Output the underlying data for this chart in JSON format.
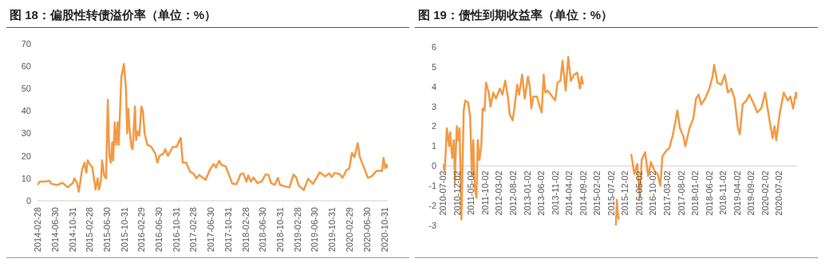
{
  "chart_data": [
    {
      "type": "line",
      "title": "图 18：偏股性转债溢价率（单位：%）",
      "color": "#f39a45",
      "x": [
        "2014-02-28",
        "2014-03-15",
        "2014-04-22",
        "2014-05-20",
        "2014-06-08",
        "2014-07-15",
        "2014-08-22",
        "2014-09-28",
        "2014-11-05",
        "2014-11-14",
        "2014-12-02",
        "2014-12-15",
        "2015-01-08",
        "2015-01-24",
        "2015-02-06",
        "2015-02-16",
        "2015-03-05",
        "2015-03-20",
        "2015-04-12",
        "2015-04-27",
        "2015-05-06",
        "2015-05-20",
        "2015-05-28",
        "2015-06-12",
        "2015-06-25",
        "2015-07-07",
        "2015-07-18",
        "2015-07-28",
        "2015-08-07",
        "2015-08-14",
        "2015-08-25",
        "2015-09-04",
        "2015-09-15",
        "2015-09-22",
        "2015-10-10",
        "2015-10-28",
        "2015-11-12",
        "2015-11-20",
        "2015-11-28",
        "2015-12-08",
        "2015-12-20",
        "2015-12-29",
        "2016-01-14",
        "2016-01-22",
        "2016-02-01",
        "2016-02-14",
        "2016-02-28",
        "2016-03-10",
        "2016-03-22",
        "2016-04-10",
        "2016-05-08",
        "2016-06-05",
        "2016-06-20",
        "2016-07-04",
        "2016-08-01",
        "2016-08-14",
        "2016-09-02",
        "2016-10-05",
        "2016-11-02",
        "2016-11-22",
        "2016-12-01",
        "2016-12-15",
        "2017-01-08",
        "2017-02-04",
        "2017-03-02",
        "2017-03-20",
        "2017-04-10",
        "2017-05-25",
        "2017-06-22",
        "2017-07-20",
        "2017-08-05",
        "2017-08-28",
        "2017-09-15",
        "2017-10-12",
        "2017-10-31",
        "2017-11-28",
        "2017-12-28",
        "2018-01-25",
        "2018-02-14",
        "2018-03-08",
        "2018-03-20",
        "2018-04-08",
        "2018-04-26",
        "2018-05-24",
        "2018-06-22",
        "2018-07-20",
        "2018-08-10",
        "2018-08-28",
        "2018-09-22",
        "2018-10-15",
        "2018-10-30",
        "2018-11-28",
        "2019-01-04",
        "2019-02-01",
        "2019-02-20",
        "2019-03-10",
        "2019-04-15",
        "2019-05-15",
        "2019-06-18",
        "2019-08-05",
        "2019-09-12",
        "2019-10-10",
        "2019-10-28",
        "2019-11-18",
        "2019-12-25",
        "2020-01-12",
        "2020-02-10",
        "2020-02-28",
        "2020-03-18",
        "2020-04-05",
        "2020-04-28",
        "2020-05-12",
        "2020-06-10",
        "2020-07-08",
        "2020-08-05",
        "2020-09-05",
        "2020-10-02",
        "2020-10-16",
        "2020-10-26",
        "2020-11-08",
        "2020-11-16",
        "2020-11-25"
      ],
      "values": [
        7,
        8.5,
        8.5,
        9,
        7.5,
        7,
        8,
        6,
        8,
        10,
        8,
        4,
        14,
        17,
        12.5,
        18,
        16,
        15,
        5,
        10,
        5,
        9,
        18,
        11,
        10,
        45,
        20,
        17,
        26,
        18,
        35,
        25,
        35,
        25,
        55,
        61,
        50,
        30,
        41,
        31,
        24,
        23,
        42,
        27,
        31,
        29,
        42,
        40,
        30,
        25,
        24,
        21,
        17,
        20,
        21,
        23,
        20,
        24,
        24,
        27,
        28,
        17,
        17,
        13,
        12,
        10,
        11.5,
        9.3,
        13.6,
        16.4,
        14.8,
        17.8,
        15.9,
        15.4,
        12.4,
        7.6,
        7.4,
        11.8,
        12.2,
        8.5,
        11.3,
        8.5,
        10.4,
        7.9,
        8.6,
        11.7,
        11.5,
        7.9,
        7.1,
        10.2,
        7.1,
        6.5,
        5.9,
        11.7,
        10.5,
        6.7,
        4.8,
        9.8,
        7.5,
        12.7,
        10.8,
        12.2,
        10.6,
        12.4,
        11.8,
        10.2,
        13.8,
        14.2,
        21.3,
        19.5,
        25.7,
        19.6,
        14.9,
        10.2,
        11,
        13.2,
        13.4,
        13.2,
        19.1,
        14.5,
        16.2,
        14.5
      ],
      "xlim": [
        "2014-02-28",
        "2020-11-25"
      ],
      "xticks": [
        "2014-02-28",
        "2014-06-30",
        "2014-10-31",
        "2015-02-28",
        "2015-06-30",
        "2015-10-31",
        "2016-02-29",
        "2016-06-30",
        "2016-10-31",
        "2017-02-28",
        "2017-06-30",
        "2017-10-31",
        "2018-02-28",
        "2018-06-30",
        "2018-10-31",
        "2019-02-28",
        "2019-06-30",
        "2019-10-31",
        "2020-02-29",
        "2020-06-30",
        "2020-10-31"
      ],
      "ylim": [
        0,
        70
      ],
      "yticks": [
        0,
        10,
        20,
        30,
        40,
        50,
        60,
        70
      ]
    },
    {
      "type": "line",
      "title": "图 19：债性到期收益率（单位：%）",
      "color": "#f39a45",
      "x": [
        "2010-07-02",
        "2010-07-22",
        "2010-08-15",
        "2010-09-08",
        "2010-09-19",
        "2010-10-12",
        "2010-10-30",
        "2010-11-10",
        "2010-11-15",
        "2010-12-02",
        "2010-12-17",
        "2010-12-31",
        "2011-01-20",
        "2011-02-14",
        "2011-03-03",
        "2011-04-02",
        "2011-04-25",
        "2011-05-14",
        "2011-05-29",
        "2011-06-14",
        "2011-07-02",
        "2011-07-17",
        "2011-08-04",
        "2011-08-24",
        "2011-09-08",
        "2011-09-29",
        "2011-10-14",
        "2011-11-13",
        "2011-12-02",
        "2012-01-01",
        "2012-01-30",
        "2012-03-13",
        "2012-04-10",
        "2012-05-10",
        "2012-06-07",
        "2012-06-28",
        "2012-07-30",
        "2012-08-20",
        "2012-09-17",
        "2012-10-08",
        "2012-11-09",
        "2012-12-08",
        "2013-01-12",
        "2013-02-01",
        "2013-02-18",
        "2013-03-10",
        "2013-04-20",
        "2013-05-20",
        "2013-06-10",
        "2013-07-02",
        "2013-07-20",
        "2013-08-14",
        "2013-09-17",
        "2013-11-04",
        "2013-11-29",
        "2013-12-31",
        "2014-01-22",
        "2014-02-26",
        "2014-03-26",
        "2014-04-23",
        "2014-05-28",
        "2014-07-02",
        "2014-07-31",
        "2014-08-17",
        "2014-09-02",
        "2015-01-01",
        "2015-08-25",
        "2015-09-05",
        "2015-09-15",
        "2015-09-25",
        "2015-11-01",
        "2016-02-08",
        "2016-03-12",
        "2016-04-14",
        "2016-05-10",
        "2016-06-01",
        "2016-07-08",
        "2016-08-10",
        "2016-09-10",
        "2016-10-22",
        "2016-11-20",
        "2016-12-20",
        "2017-01-12",
        "2017-02-28",
        "2017-03-28",
        "2017-05-02",
        "2017-06-01",
        "2017-06-23",
        "2017-07-22",
        "2017-08-27",
        "2017-09-18",
        "2017-11-02",
        "2017-12-14",
        "2018-01-12",
        "2018-02-10",
        "2018-03-10",
        "2018-04-22",
        "2018-06-06",
        "2018-07-10",
        "2018-07-28",
        "2018-09-01",
        "2018-10-14",
        "2018-11-20",
        "2018-12-25",
        "2019-01-30",
        "2019-03-06",
        "2019-04-13",
        "2019-05-03",
        "2019-06-02",
        "2019-07-14",
        "2019-08-14",
        "2019-09-26",
        "2019-11-08",
        "2019-12-22",
        "2020-02-02",
        "2020-03-17",
        "2020-04-23",
        "2020-05-14",
        "2020-06-02",
        "2020-07-08",
        "2020-08-22",
        "2020-10-04",
        "2020-11-02",
        "2020-12-02",
        "2021-01-02",
        "2021-01-14"
      ],
      "values": [
        0.1,
        -0.3,
        1.9,
        1,
        1.7,
        0.4,
        1.3,
        -0.9,
        0.2,
        2,
        1.3,
        1.9,
        -2.7,
        2.8,
        3.3,
        3.2,
        2.5,
        -0.5,
        1.3,
        -1.1,
        -1.6,
        1.3,
        0.3,
        1,
        2.9,
        2.8,
        4.2,
        3.7,
        3,
        3.7,
        3.4,
        3.9,
        3.6,
        4.3,
        3.5,
        2.6,
        2.3,
        3,
        4.1,
        3.6,
        4.6,
        3.4,
        4.5,
        4,
        2.9,
        3.5,
        3.5,
        3,
        2.7,
        4.6,
        3.7,
        3.8,
        3.6,
        3.3,
        4.2,
        4.3,
        5.3,
        3.8,
        5.5,
        4.3,
        4.6,
        4.7,
        3.9,
        4.5,
        4.1,
        null,
        -3,
        -1.7,
        -2.4,
        -2.7,
        null,
        0.6,
        -0.4,
        0.1,
        -1.6,
        0.3,
        0.7,
        -0.5,
        0.2,
        -0.3,
        -0.4,
        -1,
        0.5,
        0.8,
        0.9,
        1.5,
        2.2,
        2.8,
        1.9,
        1.5,
        1,
        1.9,
        2.4,
        3.4,
        3.6,
        3.1,
        3.4,
        3.9,
        4.5,
        5.1,
        4.2,
        4.1,
        4.6,
        3.7,
        3.9,
        3.4,
        1.9,
        1.6,
        3.1,
        3.3,
        3.6,
        3.2,
        2.7,
        2.9,
        3.7,
        2.4,
        1.4,
        2,
        1.3,
        2.6,
        3.7,
        3.3,
        3.5,
        2.9,
        3.7,
        3.4
      ],
      "xlim": [
        "2010-07-02",
        "2021-01-14"
      ],
      "xticks": [
        "2010-07-02",
        "2010-12-02",
        "2011-05-02",
        "2011-10-02",
        "2012-03-02",
        "2012-08-02",
        "2013-01-02",
        "2013-06-02",
        "2013-11-02",
        "2014-04-02",
        "2014-09-02",
        "2015-02-02",
        "2015-07-02",
        "2015-12-02",
        "2016-05-02",
        "2016-10-02",
        "2017-03-02",
        "2017-08-02",
        "2018-01-02",
        "2018-06-02",
        "2018-11-02",
        "2019-04-02",
        "2019-09-02",
        "2020-02-02",
        "2020-07-02"
      ],
      "ylim": [
        -3,
        6
      ],
      "yticks": [
        -3,
        -2,
        -1,
        0,
        1,
        2,
        3,
        4,
        5,
        6
      ]
    }
  ]
}
